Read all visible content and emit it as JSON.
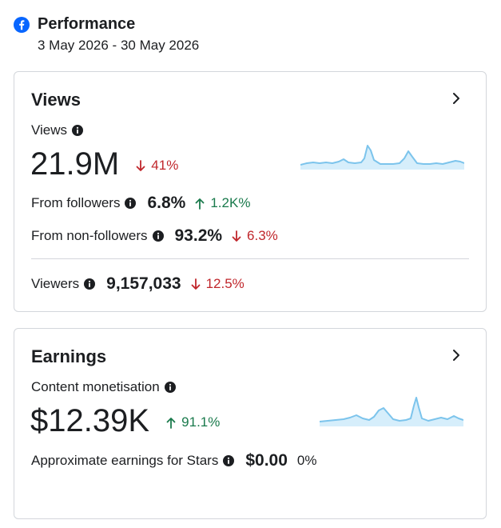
{
  "header": {
    "icon": "facebook-icon",
    "title": "Performance",
    "date_range": "3 May 2026 - 30 May 2026"
  },
  "views_card": {
    "title": "Views",
    "metric_label": "Views",
    "metric_value": "21.9M",
    "metric_delta": "41%",
    "metric_trend": "down",
    "from_followers": {
      "label": "From followers",
      "value": "6.8%",
      "delta": "1.2K%",
      "trend": "up"
    },
    "from_non_followers": {
      "label": "From non-followers",
      "value": "93.2%",
      "delta": "6.3%",
      "trend": "down"
    },
    "viewers": {
      "label": "Viewers",
      "value": "9,157,033",
      "delta": "12.5%",
      "trend": "down"
    }
  },
  "earnings_card": {
    "title": "Earnings",
    "metric_label": "Content monetisation",
    "metric_value": "$12.39K",
    "metric_delta": "91.1%",
    "metric_trend": "up",
    "stars": {
      "label": "Approximate earnings for Stars",
      "value": "$0.00",
      "delta": "0%"
    }
  },
  "colors": {
    "down": "#c0262b",
    "up": "#1a7a4c",
    "facebook_blue": "#0866ff",
    "sparkline_line": "#7cc4ec",
    "sparkline_fill": "#d6eefb",
    "border": "#d3d6db"
  }
}
